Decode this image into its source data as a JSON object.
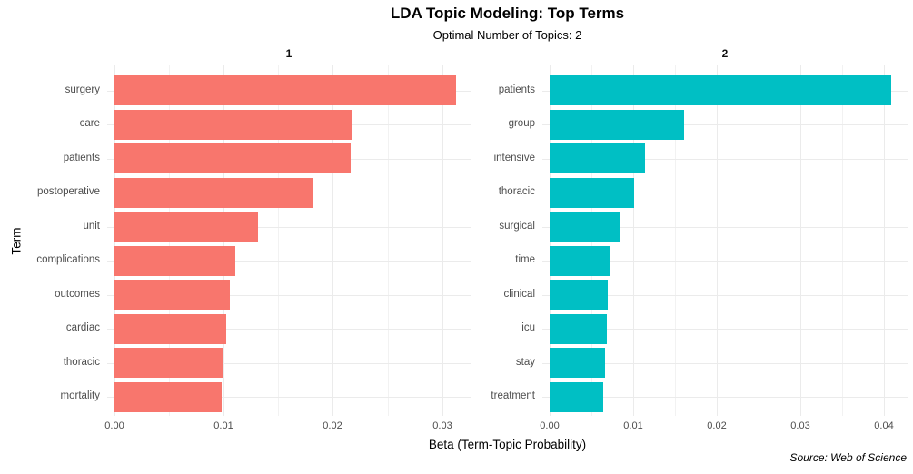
{
  "style": {
    "background": "#ffffff",
    "grid_major_color": "#EBEBEB",
    "grid_minor_color": "#F2F2F2",
    "axis_text_color": "#4D4D4D",
    "title_color": "#000000"
  },
  "chart_data": {
    "type": "bar",
    "orientation": "horizontal",
    "title": "LDA Topic Modeling: Top Terms",
    "subtitle": "Optimal Number of Topics: 2",
    "xlabel": "Beta (Term-Topic Probability)",
    "ylabel": "Term",
    "caption": "Source: Web of Science",
    "grid": true,
    "legend": "none",
    "minor_tick_step": 0.005,
    "facets": [
      {
        "label": "1",
        "bar_color": "#F8766D",
        "xlim": [
          0,
          0.0326
        ],
        "xticks": [
          0,
          0.01,
          0.02,
          0.03
        ],
        "xtick_labels": [
          "0.00",
          "0.01",
          "0.02",
          "0.03"
        ],
        "terms": [
          "surgery",
          "care",
          "patients",
          "postoperative",
          "unit",
          "complications",
          "outcomes",
          "cardiac",
          "thoracic",
          "mortality"
        ],
        "values": [
          0.0313,
          0.0217,
          0.0216,
          0.0182,
          0.0131,
          0.0111,
          0.0106,
          0.0102,
          0.01,
          0.0098
        ]
      },
      {
        "label": "2",
        "bar_color": "#00BFC4",
        "xlim": [
          0,
          0.0428
        ],
        "xticks": [
          0,
          0.01,
          0.02,
          0.03,
          0.04
        ],
        "xtick_labels": [
          "0.00",
          "0.01",
          "0.02",
          "0.03",
          "0.04"
        ],
        "terms": [
          "patients",
          "group",
          "intensive",
          "thoracic",
          "surgical",
          "time",
          "clinical",
          "icu",
          "stay",
          "treatment"
        ],
        "values": [
          0.0408,
          0.0161,
          0.0114,
          0.0101,
          0.0085,
          0.0072,
          0.007,
          0.0068,
          0.0066,
          0.0064
        ]
      }
    ]
  }
}
